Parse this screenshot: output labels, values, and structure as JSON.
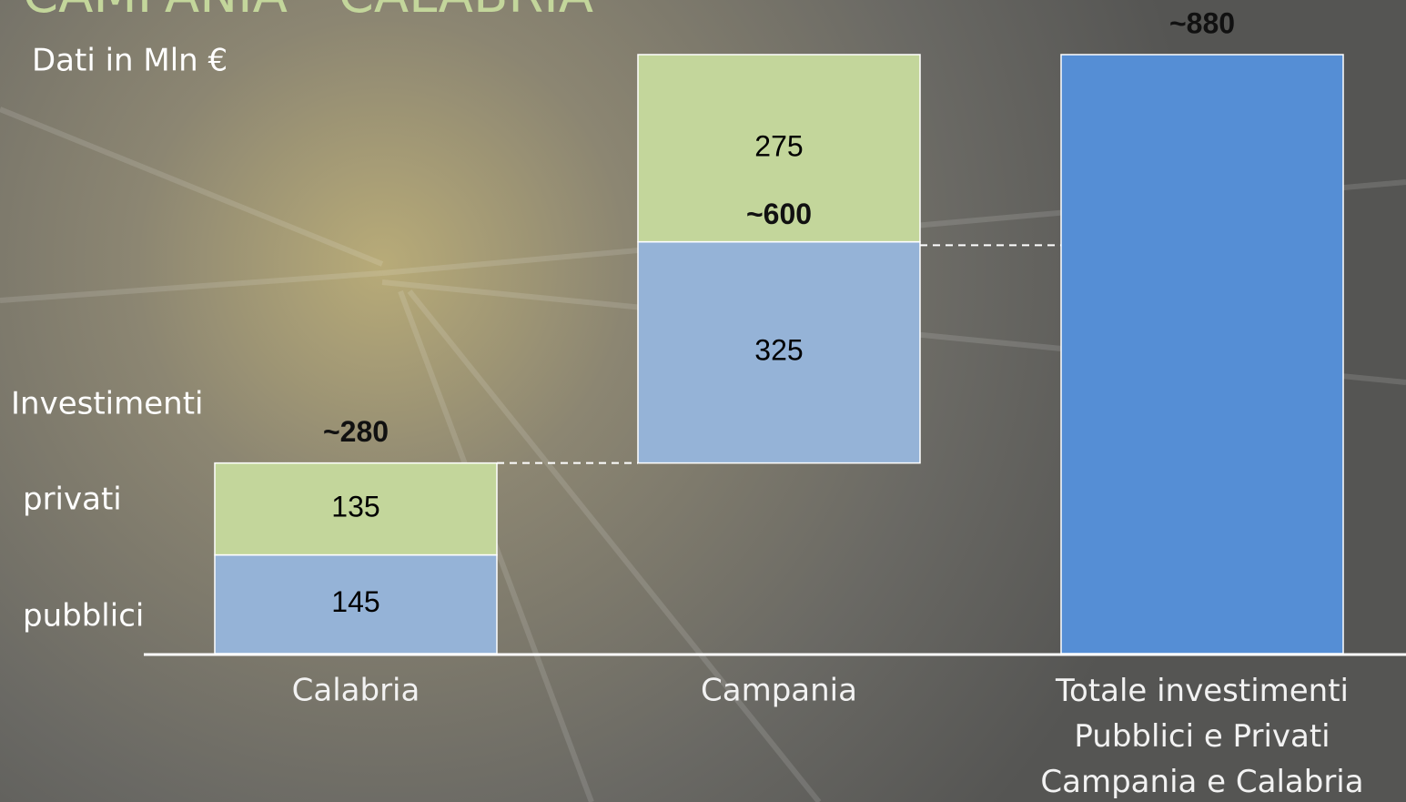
{
  "chart_data": {
    "type": "waterfall",
    "title": "CAMPANIA - CALABRIA",
    "subtitle": "Dati in Mln €",
    "legend_title": "Investimenti",
    "categories": [
      "Calabria",
      "Campania",
      "Totale investimenti\nPubblici e Privati\nCampania e Calabria"
    ],
    "series": [
      {
        "name": "pubblici",
        "color": "#95b3d7",
        "values": [
          145,
          325,
          null
        ]
      },
      {
        "name": "privati",
        "color": "#c3d69b",
        "values": [
          135,
          275,
          null
        ]
      }
    ],
    "totals": [
      280,
      600,
      880
    ],
    "total_labels": [
      "~280",
      "~600",
      "~880"
    ],
    "total_color": "#558ed5",
    "ylim": [
      0,
      880
    ]
  }
}
